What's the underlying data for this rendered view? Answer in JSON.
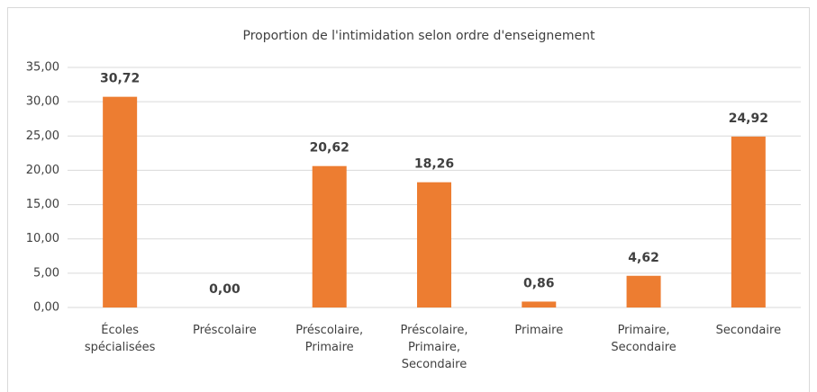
{
  "chart_data": {
    "type": "bar",
    "title": "Proportion de l'intimidation selon ordre d'enseignement",
    "categories": [
      "Écoles spécialisées",
      "Préscolaire",
      "Préscolaire, Primaire",
      "Préscolaire, Primaire, Secondaire",
      "Primaire",
      "Primaire, Secondaire",
      "Secondaire"
    ],
    "values": [
      30.72,
      0,
      20.62,
      18.26,
      0.86,
      4.62,
      24.92
    ],
    "value_labels": [
      "30,72",
      "0,00",
      "20,62",
      "18,26",
      "0,86",
      "4,62",
      "24,92"
    ],
    "color": "#ed7d31",
    "ylim": [
      0,
      35
    ],
    "yticks": [
      {
        "value": 0,
        "label": "0,00"
      },
      {
        "value": 5,
        "label": "5,00"
      },
      {
        "value": 10,
        "label": "10,00"
      },
      {
        "value": 15,
        "label": "15,00"
      },
      {
        "value": 20,
        "label": "20,00"
      },
      {
        "value": 25,
        "label": "25,00"
      },
      {
        "value": 30,
        "label": "30,00"
      },
      {
        "value": 35,
        "label": "35,00"
      }
    ],
    "grid": true
  }
}
